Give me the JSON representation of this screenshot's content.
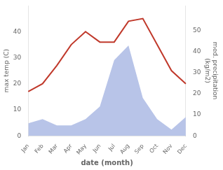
{
  "chart_data": {
    "type": "line",
    "categories": [
      "Jan",
      "Feb",
      "Mar",
      "Apr",
      "May",
      "Jun",
      "Jul",
      "Aug",
      "Sep",
      "Oct",
      "Nov",
      "Dec"
    ],
    "series": [
      {
        "type": "area",
        "color": "#b8c4e8",
        "axis": "y2",
        "values": [
          6,
          8,
          5,
          5,
          8,
          14,
          36,
          43,
          18,
          8,
          3,
          9
        ]
      },
      {
        "type": "line",
        "color": "#c0392b",
        "values": [
          17,
          20,
          27,
          35,
          40,
          36,
          36,
          44,
          45,
          35,
          25,
          20
        ]
      }
    ],
    "xlabel": "date (month)",
    "ylabel": "max temp (C)",
    "y2label": "med. precipitation\n(kg/m2)",
    "ylim": [
      0,
      50
    ],
    "yticks": [
      0,
      10,
      20,
      30,
      40
    ],
    "y2lim": [
      0,
      62
    ],
    "y2ticks": [
      0,
      10,
      20,
      30,
      40,
      50
    ],
    "grid": false
  }
}
